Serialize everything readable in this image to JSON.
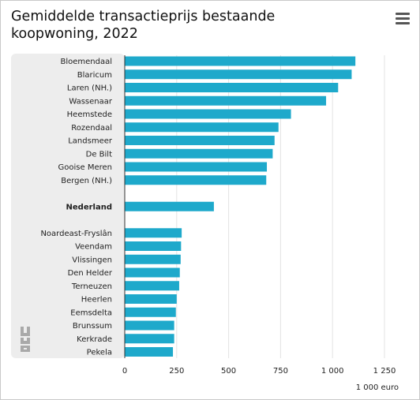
{
  "header": {
    "title_line1": "Gemiddelde transactieprijs bestaande",
    "title_line2": "koopwoning, 2022",
    "menu_icon": "hamburger-menu-icon"
  },
  "logo": {
    "name": "cbs-logo-icon",
    "text": "cbs"
  },
  "colors": {
    "bar": "#1ea9cb",
    "panel": "#ededed",
    "grid": "#e3e3e3",
    "axis": "#333333"
  },
  "chart_data": {
    "type": "bar",
    "orientation": "horizontal",
    "title": "Gemiddelde transactieprijs bestaande koopwoning, 2022",
    "xlabel": "1 000 euro",
    "xlim": [
      0,
      1250
    ],
    "xticks": [
      0,
      250,
      500,
      750,
      1000,
      1250
    ],
    "xtick_labels": [
      "0",
      "250",
      "500",
      "750",
      "1 000",
      "1 250"
    ],
    "grid": true,
    "categories": [
      "Bloemendaal",
      "Blaricum",
      "Laren (NH.)",
      "Wassenaar",
      "Heemstede",
      "Rozendaal",
      "Landsmeer",
      "De Bilt",
      "Gooise Meren",
      "Bergen (NH.)",
      "",
      "Nederland",
      "",
      "Noardeast-Fryslân",
      "Veendam",
      "Vlissingen",
      "Den Helder",
      "Terneuzen",
      "Heerlen",
      "Eemsdelta",
      "Brunssum",
      "Kerkrade",
      "Pekela"
    ],
    "values": [
      1110,
      1092,
      1027,
      969,
      800,
      740,
      721,
      712,
      684,
      681,
      null,
      429,
      null,
      274,
      271,
      269,
      265,
      262,
      250,
      246,
      238,
      238,
      232
    ],
    "bold_categories": [
      "Nederland"
    ]
  }
}
